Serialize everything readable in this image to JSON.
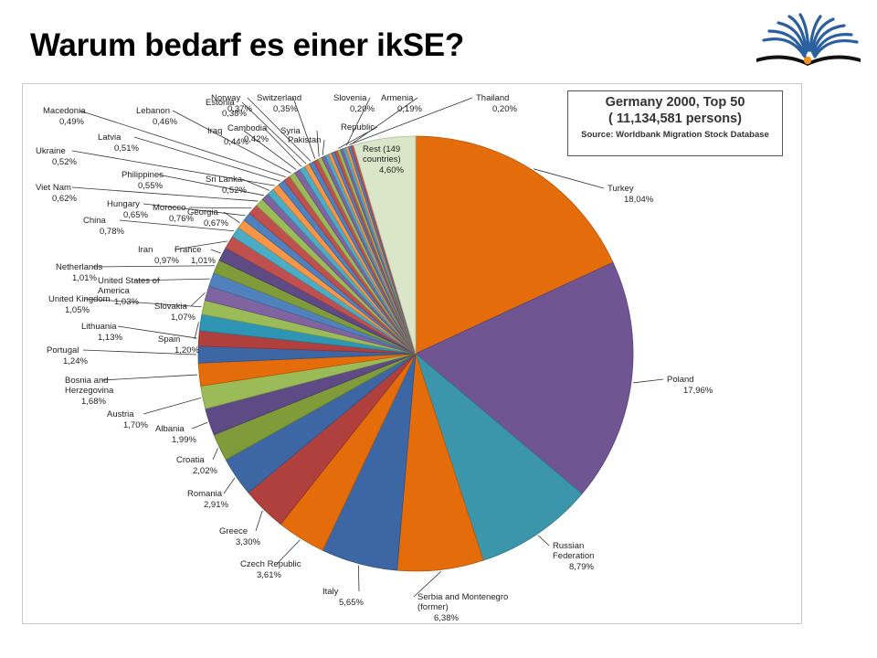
{
  "slide": {
    "title": "Warum bedarf es einer ikSE?"
  },
  "info_box": {
    "line1": "Germany 2000, Top 50",
    "line2": "( 11,134,581 persons)",
    "line3": "Source: Worldbank Migration Stock Database"
  },
  "chart_data": {
    "type": "pie",
    "title": "Germany 2000, Top 50",
    "subtitle": "( 11,134,581 persons)",
    "source": "Source: Worldbank Migration Stock Database",
    "slices": [
      {
        "label": "Turkey",
        "value": 18.04,
        "text": "18,04%",
        "color": "#e46c0a"
      },
      {
        "label": "Poland",
        "value": 17.96,
        "text": "17,96%",
        "color": "#6f5592"
      },
      {
        "label": "Russian Federation",
        "value": 8.79,
        "text": "8,79%",
        "color": "#3c96ab"
      },
      {
        "label": "Serbia and Montenegro (former)",
        "value": 6.38,
        "text": "6,38%",
        "color": "#e46c0a"
      },
      {
        "label": "Italy",
        "value": 5.65,
        "text": "5,65%",
        "color": "#3d66a4"
      },
      {
        "label": "Czech Republic",
        "value": 3.61,
        "text": "3,61%",
        "color": "#e46c0a"
      },
      {
        "label": "Greece",
        "value": 3.3,
        "text": "3,30%",
        "color": "#b0403e"
      },
      {
        "label": "Romania",
        "value": 2.91,
        "text": "2,91%",
        "color": "#3d66a4"
      },
      {
        "label": "Croatia",
        "value": 2.02,
        "text": "2,02%",
        "color": "#7f9b3a"
      },
      {
        "label": "Albania",
        "value": 1.99,
        "text": "1,99%",
        "color": "#5e4a85"
      },
      {
        "label": "Austria",
        "value": 1.7,
        "text": "1,70%",
        "color": "#9bbb59"
      },
      {
        "label": "Bosnia and Herzegovina",
        "value": 1.68,
        "text": "1,68%",
        "color": "#e46c0a"
      },
      {
        "label": "Portugal",
        "value": 1.24,
        "text": "1,24%",
        "color": "#3d66a4"
      },
      {
        "label": "Lithuania",
        "value": 1.13,
        "text": "1,13%",
        "color": "#b0403e"
      },
      {
        "label": "Spain",
        "value": 1.2,
        "text": "1,20%",
        "color": "#2f95b5"
      },
      {
        "label": "United Kingdom",
        "value": 1.05,
        "text": "1,05%",
        "color": "#9bbb59"
      },
      {
        "label": "Slovakia",
        "value": 1.07,
        "text": "1,07%",
        "color": "#8064a2"
      },
      {
        "label": "United States of America",
        "value": 1.03,
        "text": "1,03%",
        "color": "#4f81bd"
      },
      {
        "label": "Netherlands",
        "value": 1.01,
        "text": "1,01%",
        "color": "#7f9b3a"
      },
      {
        "label": "France",
        "value": 1.01,
        "text": "1,01%",
        "color": "#5e4a85"
      },
      {
        "label": "Iran",
        "value": 0.97,
        "text": "0,97%",
        "color": "#c0504d"
      },
      {
        "label": "China",
        "value": 0.78,
        "text": "0,78%",
        "color": "#4bacc6"
      },
      {
        "label": "Georgia",
        "value": 0.67,
        "text": "0,67%",
        "color": "#f79646"
      },
      {
        "label": "Hungary",
        "value": 0.65,
        "text": "0,65%",
        "color": "#4f81bd"
      },
      {
        "label": "Morocco",
        "value": 0.76,
        "text": "0,76%",
        "color": "#c0504d"
      },
      {
        "label": "Viet Nam",
        "value": 0.62,
        "text": "0,62%",
        "color": "#9bbb59"
      },
      {
        "label": "Philippines",
        "value": 0.55,
        "text": "0,55%",
        "color": "#8064a2"
      },
      {
        "label": "Sri Lanka",
        "value": 0.52,
        "text": "0,52%",
        "color": "#4bacc6"
      },
      {
        "label": "Ukraine",
        "value": 0.52,
        "text": "0,52%",
        "color": "#f79646"
      },
      {
        "label": "Latvia",
        "value": 0.51,
        "text": "0,51%",
        "color": "#4f81bd"
      },
      {
        "label": "Macedonia",
        "value": 0.49,
        "text": "0,49%",
        "color": "#c0504d"
      },
      {
        "label": "Lebanon",
        "value": 0.46,
        "text": "0,46%",
        "color": "#9bbb59"
      },
      {
        "label": "Iraq",
        "value": 0.44,
        "text": "0,44%",
        "color": "#8064a2"
      },
      {
        "label": "Cambodia",
        "value": 0.42,
        "text": "0,42%",
        "color": "#4bacc6"
      },
      {
        "label": "Estonia",
        "value": 0.38,
        "text": "0,38%",
        "color": "#f79646"
      },
      {
        "label": "Norway",
        "value": 0.37,
        "text": "0,37%",
        "color": "#4f81bd"
      },
      {
        "label": "Switzerland",
        "value": 0.35,
        "text": "0,35%",
        "color": "#c0504d"
      },
      {
        "label": "Syria",
        "value": 0.3,
        "text": "",
        "color": "#9bbb59"
      },
      {
        "label": "Pakistan",
        "value": 0.28,
        "text": "",
        "color": "#8064a2"
      },
      {
        "label": "",
        "value": 0.26,
        "text": "",
        "color": "#4bacc6"
      },
      {
        "label": "",
        "value": 0.25,
        "text": "",
        "color": "#f79646"
      },
      {
        "label": "",
        "value": 0.24,
        "text": "",
        "color": "#4f81bd"
      },
      {
        "label": "",
        "value": 0.23,
        "text": "",
        "color": "#c0504d"
      },
      {
        "label": "Republic",
        "value": 0.22,
        "text": "",
        "color": "#9bbb59"
      },
      {
        "label": "",
        "value": 0.21,
        "text": "",
        "color": "#8064a2"
      },
      {
        "label": "",
        "value": 0.21,
        "text": "",
        "color": "#4bacc6"
      },
      {
        "label": "Slovenia",
        "value": 0.2,
        "text": "0,20%",
        "color": "#f79646"
      },
      {
        "label": "Thailand",
        "value": 0.2,
        "text": "0,20%",
        "color": "#4f81bd"
      },
      {
        "label": "Armenia",
        "value": 0.19,
        "text": "0,19%",
        "color": "#c0504d"
      },
      {
        "label": "Rest (149 countries)",
        "value": 4.6,
        "text": "4,60%",
        "color": "#d9e6c8"
      }
    ]
  }
}
